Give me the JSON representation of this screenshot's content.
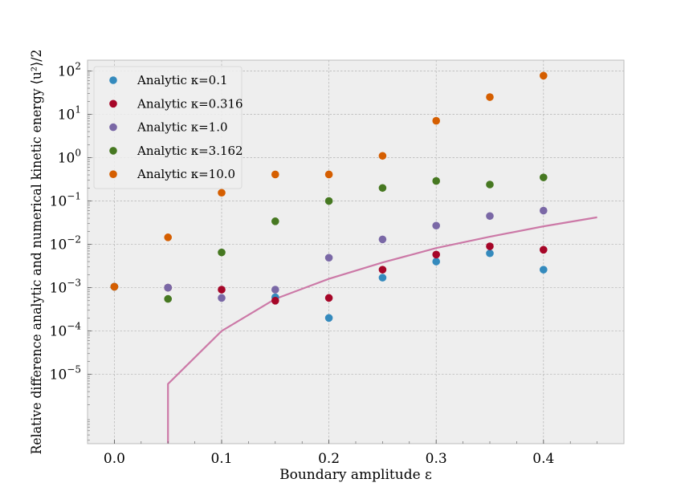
{
  "chart_data": {
    "type": "scatter",
    "title": "",
    "xlabel": "Boundary amplitude ε",
    "ylabel": "Relative difference analytic and numerical kinetic energy ⟨u²⟩/2",
    "xlim": [
      -0.025,
      0.475
    ],
    "ylim_log10": [
      -6.6,
      2.25
    ],
    "y_scale": "log",
    "grid": true,
    "legend_position": "top-left",
    "x_ticks": [
      {
        "value": 0.0,
        "label": "0.0"
      },
      {
        "value": 0.1,
        "label": "0.1"
      },
      {
        "value": 0.2,
        "label": "0.2"
      },
      {
        "value": 0.3,
        "label": "0.3"
      },
      {
        "value": 0.4,
        "label": "0.4"
      }
    ],
    "y_ticks": [
      {
        "exp": -5,
        "base": "10",
        "sup": "−5"
      },
      {
        "exp": -4,
        "base": "10",
        "sup": "−4"
      },
      {
        "exp": -3,
        "base": "10",
        "sup": "−3"
      },
      {
        "exp": -2,
        "base": "10",
        "sup": "−2"
      },
      {
        "exp": -1,
        "base": "10",
        "sup": "−1"
      },
      {
        "exp": 0,
        "base": "10",
        "sup": "0"
      },
      {
        "exp": 1,
        "base": "10",
        "sup": "1"
      },
      {
        "exp": 2,
        "base": "10",
        "sup": "2"
      }
    ],
    "series": [
      {
        "name": "Analytic κ=0.1",
        "color": "#348abd",
        "x": [
          0.0,
          0.05,
          0.15,
          0.2,
          0.25,
          0.3,
          0.35,
          0.4
        ],
        "y": [
          0.00105,
          0.001,
          0.0006,
          0.0002,
          0.0017,
          0.004,
          0.0062,
          0.0026
        ]
      },
      {
        "name": "Analytic κ=0.316",
        "color": "#a60628",
        "x": [
          0.0,
          0.05,
          0.1,
          0.15,
          0.2,
          0.25,
          0.3,
          0.35,
          0.4
        ],
        "y": [
          0.00105,
          0.001,
          0.0009,
          0.0005,
          0.00058,
          0.0026,
          0.0058,
          0.009,
          0.0075
        ]
      },
      {
        "name": "Analytic κ=1.0",
        "color": "#7a68a6",
        "x": [
          0.0,
          0.05,
          0.1,
          0.15,
          0.2,
          0.25,
          0.3,
          0.35,
          0.4
        ],
        "y": [
          0.00105,
          0.001,
          0.00058,
          0.0009,
          0.0049,
          0.013,
          0.027,
          0.045,
          0.06
        ]
      },
      {
        "name": "Analytic κ=3.162",
        "color": "#467821",
        "x": [
          0.0,
          0.05,
          0.1,
          0.15,
          0.2,
          0.25,
          0.3,
          0.35,
          0.4
        ],
        "y": [
          0.00105,
          0.00055,
          0.0065,
          0.034,
          0.1,
          0.2,
          0.29,
          0.24,
          0.35
        ]
      },
      {
        "name": "Analytic κ=10.0",
        "color": "#d55e00",
        "x": [
          0.0,
          0.05,
          0.1,
          0.15,
          0.2,
          0.25,
          0.3,
          0.35,
          0.4
        ],
        "y": [
          0.00105,
          0.0145,
          0.155,
          0.41,
          0.41,
          1.1,
          7.1,
          25,
          78
        ]
      }
    ],
    "line": {
      "color": "#cc79a7",
      "x": [
        0.05,
        0.05,
        0.1,
        0.15,
        0.2,
        0.25,
        0.3,
        0.35,
        0.4,
        0.45
      ],
      "y": [
        1e-07,
        6e-06,
        0.0001,
        0.00055,
        0.0016,
        0.0038,
        0.0082,
        0.015,
        0.026,
        0.042
      ]
    }
  }
}
